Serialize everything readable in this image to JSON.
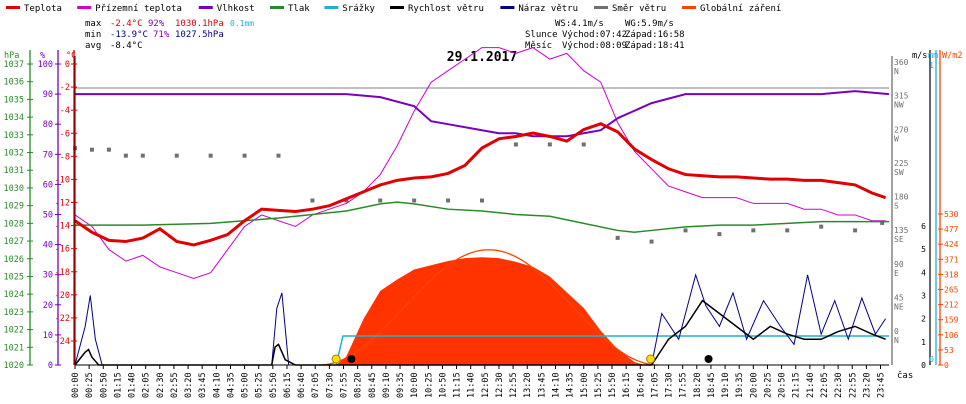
{
  "chart_data": {
    "type": "line",
    "title": "29.1.2017",
    "xlabel": "čas",
    "legend": [
      {
        "name": "Teplota",
        "color": "#e00000"
      },
      {
        "name": "Přízemní teplota",
        "color": "#d000d0"
      },
      {
        "name": "Vlhkost",
        "color": "#7a00c0"
      },
      {
        "name": "Tlak",
        "color": "#2a8a2a"
      },
      {
        "name": "Srážky",
        "color": "#20b0d0"
      },
      {
        "name": "Rychlost větru",
        "color": "#000000"
      },
      {
        "name": "Náraz větru",
        "color": "#00008b"
      },
      {
        "name": "Směr větru",
        "color": "#707070"
      },
      {
        "name": "Globální záření",
        "color": "#ff4400"
      }
    ],
    "stats": {
      "max": {
        "label": "max",
        "temp": "-2.4°C",
        "hum": "92%",
        "press": "1030.1hPa",
        "rain": "0.1mm"
      },
      "min": {
        "label": "min",
        "temp": "-13.9°C",
        "hum": "71%",
        "press": "1027.5hPa"
      },
      "avg": {
        "label": "avg",
        "temp": "-8.4°C"
      }
    },
    "info": {
      "ws": "WS:4.1m/s",
      "wg": "WG:5.9m/s",
      "sun_label": "Slunce",
      "sunrise": "Východ:07:42",
      "sunset": "Západ:16:58",
      "moon_label": "Měsíc",
      "moonrise": "Východ:08:09",
      "moonset": "Západ:18:41"
    },
    "axes": {
      "hpa": {
        "label": "hPa",
        "ticks": [
          "1037",
          "1036",
          "1035",
          "1034",
          "1033",
          "1032",
          "1031",
          "1030",
          "1029",
          "1028",
          "1027",
          "1026",
          "1025",
          "1024",
          "1023",
          "1022",
          "1021",
          "1020"
        ]
      },
      "pct": {
        "label": "%",
        "ticks": [
          "100",
          "90",
          "80",
          "70",
          "60",
          "50",
          "40",
          "30",
          "20",
          "10",
          "0"
        ]
      },
      "degc": {
        "label": "°C",
        "ticks": [
          "0",
          "-2",
          "-4",
          "-6",
          "-8",
          "-10",
          "-12",
          "-14",
          "-16",
          "-18",
          "-20",
          "-22",
          "-24"
        ]
      },
      "dir": {
        "values": [
          "360",
          "315",
          "270",
          "225",
          "180",
          "135",
          "90",
          "45",
          "0"
        ],
        "letters": [
          "N",
          "NW",
          "W",
          "SW",
          "S",
          "SE",
          "E",
          "NE",
          "N"
        ]
      },
      "ms": {
        "label": "m/s",
        "ticks": [
          "6",
          "5",
          "4",
          "3",
          "2",
          "1",
          "0"
        ]
      },
      "mm": {
        "label": "mm",
        "ticks": [
          "1",
          "0"
        ]
      },
      "wm2": {
        "label": "W/m2",
        "ticks": [
          "530",
          "477",
          "424",
          "371",
          "318",
          "265",
          "212",
          "159",
          "106",
          "53",
          "0"
        ]
      }
    },
    "x_ticks": [
      "00:00",
      "00:25",
      "00:50",
      "01:15",
      "01:40",
      "02:05",
      "02:30",
      "02:55",
      "03:20",
      "03:45",
      "04:10",
      "04:35",
      "05:00",
      "05:25",
      "05:50",
      "06:15",
      "06:40",
      "07:05",
      "07:30",
      "07:55",
      "08:20",
      "08:45",
      "09:10",
      "09:35",
      "10:00",
      "10:25",
      "10:50",
      "11:15",
      "11:40",
      "12:05",
      "12:30",
      "12:55",
      "13:20",
      "13:45",
      "14:10",
      "14:35",
      "15:00",
      "15:25",
      "15:50",
      "16:15",
      "16:40",
      "17:05",
      "17:30",
      "17:55",
      "18:20",
      "18:45",
      "19:10",
      "19:35",
      "20:00",
      "20:25",
      "20:50",
      "21:15",
      "21:40",
      "22:05",
      "22:30",
      "22:55",
      "23:20",
      "23:45"
    ],
    "x_range_hours": [
      0,
      24
    ],
    "series": [
      {
        "name": "Teplota",
        "x": [
          0,
          0.5,
          1,
          1.5,
          2,
          2.5,
          3,
          3.5,
          4,
          4.5,
          5,
          5.5,
          6,
          6.5,
          7,
          7.5,
          8,
          8.5,
          9,
          9.5,
          10,
          10.5,
          11,
          11.5,
          12,
          12.5,
          13,
          13.5,
          14,
          14.5,
          15,
          15.5,
          16,
          16.5,
          17,
          17.5,
          18,
          18.5,
          19,
          19.5,
          20,
          20.5,
          21,
          21.5,
          22,
          22.5,
          23,
          23.5,
          23.9
        ],
        "y": [
          -11.5,
          -12.5,
          -13.2,
          -13.3,
          -13.0,
          -12.2,
          -13.3,
          -13.6,
          -13.2,
          -12.7,
          -11.5,
          -10.5,
          -10.6,
          -10.7,
          -10.5,
          -10.2,
          -9.6,
          -9.0,
          -8.4,
          -8.0,
          -7.8,
          -7.7,
          -7.4,
          -6.7,
          -5.2,
          -4.4,
          -4.2,
          -3.9,
          -4.2,
          -4.6,
          -3.6,
          -3.1,
          -3.8,
          -5.3,
          -6.2,
          -7.0,
          -7.5,
          -7.6,
          -7.7,
          -7.7,
          -7.8,
          -7.9,
          -7.9,
          -8.0,
          -8.0,
          -8.2,
          -8.4,
          -9.1,
          -9.5
        ]
      },
      {
        "name": "Přízemní teplota",
        "x": [
          0,
          0.5,
          1,
          1.5,
          2,
          2.5,
          3,
          3.5,
          4,
          4.5,
          5,
          5.5,
          6,
          6.5,
          7,
          7.5,
          8,
          8.5,
          9,
          9.5,
          10,
          10.5,
          11,
          11.5,
          12,
          12.5,
          13,
          13.5,
          14,
          14.5,
          15,
          15.5,
          16,
          16.5,
          17,
          17.5,
          18,
          18.5,
          19,
          19.5,
          20,
          20.5,
          21,
          21.5,
          22,
          22.5,
          23,
          23.5,
          23.9
        ],
        "y": [
          -11.0,
          -12.0,
          -14.0,
          -15.0,
          -14.5,
          -15.5,
          -16.0,
          -16.5,
          -16.0,
          -14.0,
          -12.0,
          -11.0,
          -11.5,
          -12.0,
          -11.0,
          -10.5,
          -10.0,
          -9.0,
          -7.5,
          -5.0,
          -2.0,
          0.5,
          1.5,
          2.5,
          3.5,
          3.5,
          3.0,
          3.5,
          2.5,
          3.0,
          1.5,
          0.5,
          -3.0,
          -5.5,
          -7.0,
          -8.5,
          -9.0,
          -9.5,
          -9.5,
          -9.5,
          -10.0,
          -10.0,
          -10.0,
          -10.5,
          -10.5,
          -11.0,
          -11.0,
          -11.5,
          -11.5
        ]
      },
      {
        "name": "Vlhkost",
        "x": [
          0,
          1,
          2,
          3,
          4,
          5,
          6,
          7,
          8,
          9,
          10,
          10.5,
          11,
          12,
          12.5,
          13,
          13.5,
          14,
          14.5,
          15,
          15.5,
          16,
          17,
          18,
          19,
          20,
          21,
          22,
          23,
          24
        ],
        "y": [
          90,
          90,
          90,
          90,
          90,
          90,
          90,
          90,
          90,
          89,
          86,
          81,
          80,
          78,
          77,
          77,
          76,
          76,
          76,
          77,
          78,
          82,
          87,
          90,
          90,
          90,
          90,
          90,
          91,
          90
        ]
      },
      {
        "name": "Tlak",
        "x": [
          0,
          2,
          4,
          6,
          8,
          9,
          9.5,
          10,
          11,
          12,
          13,
          14,
          15,
          16,
          16.5,
          17,
          18,
          19,
          20,
          21,
          22,
          23,
          24
        ],
        "y": [
          1027.9,
          1027.9,
          1028.0,
          1028.3,
          1028.7,
          1029.1,
          1029.2,
          1029.1,
          1028.8,
          1028.7,
          1028.5,
          1028.4,
          1028.0,
          1027.6,
          1027.5,
          1027.6,
          1027.8,
          1027.9,
          1027.9,
          1028.0,
          1028.1,
          1028.1,
          1028.1
        ]
      },
      {
        "name": "Srážky",
        "x": [
          7.7,
          7.9,
          16.0,
          24.0
        ],
        "y": [
          0,
          0.1,
          0.1,
          0.1
        ]
      },
      {
        "name": "Rychlost větru",
        "x": [
          0,
          0.3,
          0.4,
          0.5,
          0.7,
          5.8,
          5.9,
          6.0,
          6.2,
          6.5,
          17.0,
          17.5,
          18.0,
          18.5,
          19.0,
          19.5,
          20.0,
          20.5,
          21.0,
          21.5,
          22.0,
          22.5,
          23.0,
          23.5,
          23.9
        ],
        "y": [
          0,
          0.5,
          0.6,
          0.3,
          0,
          0,
          0.7,
          0.8,
          0.2,
          0,
          0,
          1.0,
          1.5,
          2.5,
          2.0,
          1.5,
          1.0,
          1.5,
          1.2,
          1.0,
          1.0,
          1.3,
          1.5,
          1.2,
          1.0
        ]
      },
      {
        "name": "Náraz větru",
        "x": [
          0,
          0.3,
          0.45,
          0.6,
          0.8,
          5.8,
          5.95,
          6.1,
          6.3,
          17.0,
          17.3,
          17.8,
          18.3,
          18.6,
          19.0,
          19.4,
          19.8,
          20.3,
          20.8,
          21.2,
          21.6,
          22.0,
          22.4,
          22.8,
          23.2,
          23.6,
          23.9
        ],
        "y": [
          0,
          1.5,
          2.7,
          1.0,
          0,
          0,
          2.2,
          2.8,
          0,
          0,
          2.0,
          1.0,
          3.5,
          2.3,
          1.5,
          2.8,
          1.0,
          2.5,
          1.5,
          0.8,
          3.5,
          1.2,
          2.5,
          1.0,
          2.6,
          1.2,
          1.8
        ]
      },
      {
        "name": "Směr větru",
        "x": [
          0,
          0.5,
          1,
          1.5,
          2,
          3,
          4,
          5,
          6,
          7,
          8,
          9,
          10,
          11,
          12,
          13,
          14,
          15,
          16,
          17,
          18,
          19,
          20,
          21,
          22,
          23,
          23.8
        ],
        "y": [
          250,
          248,
          248,
          240,
          240,
          240,
          240,
          240,
          240,
          180,
          180,
          180,
          180,
          180,
          180,
          255,
          255,
          255,
          130,
          125,
          140,
          135,
          140,
          140,
          145,
          140,
          150
        ]
      },
      {
        "name": "Globální záření",
        "x": [
          7.7,
          8.0,
          8.5,
          9.0,
          9.5,
          10.0,
          10.5,
          11.0,
          11.5,
          12.0,
          12.5,
          13.0,
          13.5,
          14.0,
          14.5,
          15.0,
          15.5,
          16.0,
          16.5,
          16.8
        ],
        "y": [
          0,
          30,
          160,
          260,
          300,
          335,
          350,
          365,
          375,
          378,
          375,
          362,
          345,
          310,
          255,
          200,
          120,
          55,
          10,
          0
        ]
      }
    ]
  }
}
